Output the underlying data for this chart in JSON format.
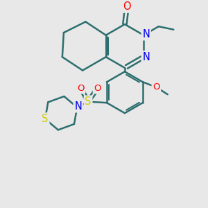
{
  "background_color": "#e8e8e8",
  "bond_color": "#2d6e6e",
  "bond_width": 1.8,
  "colors": {
    "O": "#ff0000",
    "N": "#0000ee",
    "S_sulfonyl": "#cccc00",
    "S_thio": "#cccc00",
    "C": "#2d6e6e"
  },
  "figsize": [
    3.0,
    3.0
  ],
  "dpi": 100
}
